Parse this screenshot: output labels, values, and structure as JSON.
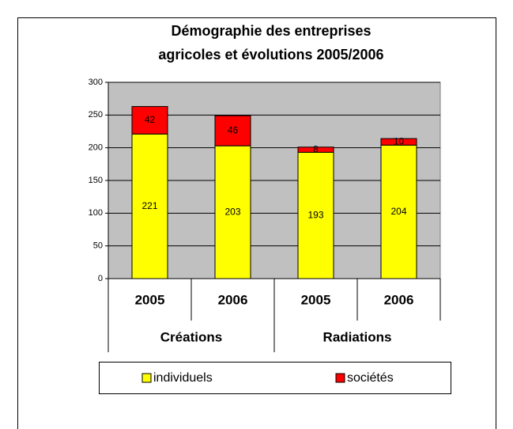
{
  "chart_data": {
    "type": "stacked_bar",
    "title": [
      "Démographie des entreprises",
      "agricoles et évolutions 2005/2006"
    ],
    "categories": [
      "2005",
      "2006",
      "2005",
      "2006"
    ],
    "groups": [
      "Créations",
      "Radiations"
    ],
    "series": [
      {
        "name": "individuels",
        "color": "#ffff00",
        "values": [
          221,
          203,
          193,
          204
        ]
      },
      {
        "name": "sociétés",
        "color": "#ff0000",
        "values": [
          42,
          46,
          8,
          10
        ]
      }
    ],
    "ylim": [
      0,
      300
    ],
    "yticks": [
      0,
      50,
      100,
      150,
      200,
      250,
      300
    ],
    "grid": true,
    "plot_background": "#c0c0c0",
    "legend": "bottom"
  }
}
